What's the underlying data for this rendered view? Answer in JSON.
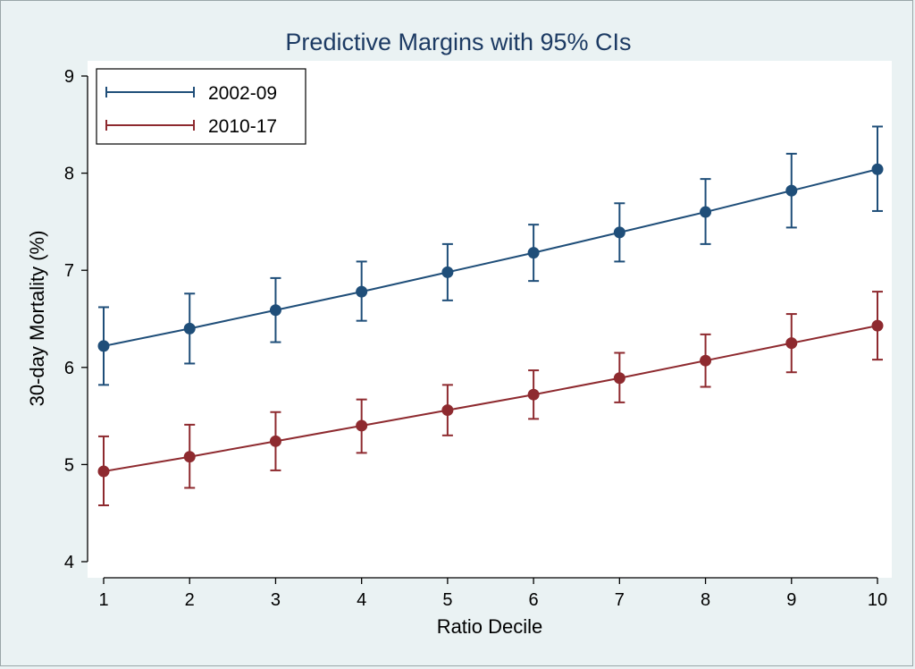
{
  "chart_data": {
    "type": "line",
    "title": "Predictive Margins with 95% CIs",
    "xlabel": "Ratio Decile",
    "ylabel": "30-day Mortality (%)",
    "x": [
      1,
      2,
      3,
      4,
      5,
      6,
      7,
      8,
      9,
      10
    ],
    "xlim": [
      1,
      10
    ],
    "ylim": [
      4,
      9
    ],
    "yticks": [
      4,
      5,
      6,
      7,
      8,
      9
    ],
    "xticks": [
      1,
      2,
      3,
      4,
      5,
      6,
      7,
      8,
      9,
      10
    ],
    "legend_position": "top-left",
    "series": [
      {
        "name": "2002-09",
        "color": "#1f4e79",
        "values": [
          6.22,
          6.4,
          6.59,
          6.78,
          6.98,
          7.18,
          7.39,
          7.6,
          7.82,
          8.04
        ],
        "ci_low": [
          5.82,
          6.04,
          6.26,
          6.48,
          6.69,
          6.89,
          7.09,
          7.27,
          7.44,
          7.61
        ],
        "ci_high": [
          6.62,
          6.76,
          6.92,
          7.09,
          7.27,
          7.47,
          7.69,
          7.94,
          8.2,
          8.48
        ]
      },
      {
        "name": "2010-17",
        "color": "#8e2a2f",
        "values": [
          4.93,
          5.08,
          5.24,
          5.4,
          5.56,
          5.72,
          5.89,
          6.07,
          6.25,
          6.43
        ],
        "ci_low": [
          4.58,
          4.76,
          4.94,
          5.12,
          5.3,
          5.47,
          5.64,
          5.8,
          5.95,
          6.08
        ],
        "ci_high": [
          5.29,
          5.41,
          5.54,
          5.67,
          5.82,
          5.97,
          6.15,
          6.34,
          6.55,
          6.78
        ]
      }
    ]
  }
}
